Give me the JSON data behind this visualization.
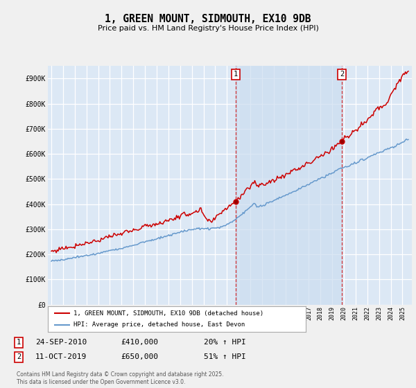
{
  "title": "1, GREEN MOUNT, SIDMOUTH, EX10 9DB",
  "subtitle": "Price paid vs. HM Land Registry's House Price Index (HPI)",
  "ylim": [
    0,
    950000
  ],
  "yticks": [
    0,
    100000,
    200000,
    300000,
    400000,
    500000,
    600000,
    700000,
    800000,
    900000
  ],
  "ytick_labels": [
    "£0",
    "£100K",
    "£200K",
    "£300K",
    "£400K",
    "£500K",
    "£600K",
    "£700K",
    "£800K",
    "£900K"
  ],
  "fig_bg_color": "#f0f0f0",
  "plot_bg_color": "#dce8f5",
  "grid_color": "#ffffff",
  "red_color": "#cc0000",
  "blue_color": "#6699cc",
  "shade_color": "#ccddf0",
  "marker1_x": 2010.75,
  "marker1_price": 410000,
  "marker2_x": 2019.83,
  "marker2_price": 650000,
  "xlim_left": 1994.7,
  "xlim_right": 2025.8,
  "legend_line1": "1, GREEN MOUNT, SIDMOUTH, EX10 9DB (detached house)",
  "legend_line2": "HPI: Average price, detached house, East Devon",
  "footer_date1": "24-SEP-2010",
  "footer_price1": "£410,000",
  "footer_pct1": "20% ↑ HPI",
  "footer_date2": "11-OCT-2019",
  "footer_price2": "£650,000",
  "footer_pct2": "51% ↑ HPI",
  "copyright": "Contains HM Land Registry data © Crown copyright and database right 2025.\nThis data is licensed under the Open Government Licence v3.0."
}
